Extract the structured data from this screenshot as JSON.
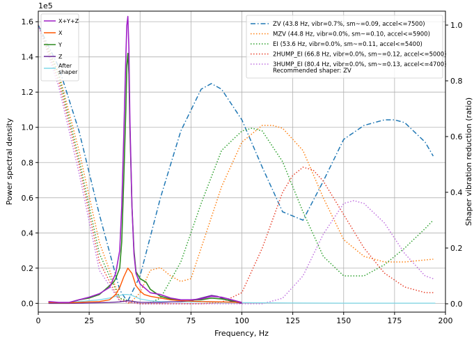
{
  "chart_data": {
    "type": "line",
    "xlabel": "Frequency, Hz",
    "ylabel_left": "Power spectral density",
    "ylabel_right": "Shaper vibration reduction (ratio)",
    "y_left_exponent": "1e5",
    "xlim": [
      0,
      200
    ],
    "ylim_left": [
      -0.05,
      1.66
    ],
    "ylim_right": [
      -0.03,
      1.05
    ],
    "grid": true,
    "x_ticks": [
      0,
      25,
      50,
      75,
      100,
      125,
      150,
      175,
      200
    ],
    "y_left_ticks": [
      0.0,
      0.2,
      0.4,
      0.6,
      0.8,
      1.0,
      1.2,
      1.4,
      1.6
    ],
    "y_right_ticks": [
      0.0,
      0.2,
      0.4,
      0.6,
      0.8,
      1.0
    ],
    "psd_legend": {
      "placement": "upper-left",
      "entries": [
        "X+Y+Z",
        "X",
        "Y",
        "Z",
        "After\nshaper"
      ]
    },
    "shaper_legend": {
      "placement": "upper-right",
      "entries": [
        "ZV (43.8 Hz, vibr=0.7%, sm~=0.09, accel<=7500)",
        "MZV (44.8 Hz, vibr=0.0%, sm~=0.10, accel<=5900)",
        "EI (53.6 Hz, vibr=0.0%, sm~=0.11, accel<=5400)",
        "2HUMP_EI (66.8 Hz, vibr=0.0%, sm~=0.12, accel<=5000)",
        "3HUMP_EI (80.4 Hz, vibr=0.0%, sm~=0.13, accel<=4700)"
      ],
      "note": "Recommended shaper: ZV"
    },
    "psd_series": [
      {
        "name": "X+Y+Z",
        "color": "#a020c8",
        "width": 1.6,
        "x": [
          5,
          10,
          15,
          20,
          25,
          30,
          35,
          38,
          40,
          41,
          42,
          43,
          43.5,
          44,
          44.5,
          45,
          46,
          47,
          48,
          50,
          55,
          60,
          65,
          70,
          75,
          80,
          85,
          90,
          95,
          100
        ],
        "y": [
          0.01,
          0.005,
          0.005,
          0.02,
          0.035,
          0.055,
          0.09,
          0.17,
          0.3,
          0.55,
          0.95,
          1.4,
          1.58,
          1.63,
          1.45,
          1.05,
          0.55,
          0.28,
          0.17,
          0.11,
          0.06,
          0.05,
          0.03,
          0.02,
          0.02,
          0.025,
          0.04,
          0.035,
          0.02,
          0.005
        ]
      },
      {
        "name": "X",
        "color": "#ff5500",
        "width": 1.4,
        "x": [
          5,
          10,
          15,
          20,
          25,
          30,
          35,
          38,
          40,
          42,
          44,
          46,
          48,
          50,
          52,
          55,
          60,
          65,
          70,
          80,
          90,
          100
        ],
        "y": [
          0.005,
          0.003,
          0.003,
          0.005,
          0.008,
          0.01,
          0.02,
          0.05,
          0.09,
          0.15,
          0.2,
          0.17,
          0.1,
          0.07,
          0.05,
          0.04,
          0.03,
          0.02,
          0.015,
          0.01,
          0.008,
          0.005
        ]
      },
      {
        "name": "Y",
        "color": "#2e8b20",
        "width": 1.6,
        "x": [
          5,
          10,
          15,
          20,
          25,
          30,
          32,
          35,
          37,
          38,
          39,
          40,
          41,
          42,
          43,
          43.5,
          44,
          44.5,
          45,
          46,
          47,
          48,
          50,
          53,
          55,
          60,
          65,
          70,
          75,
          80,
          85,
          90,
          95,
          100
        ],
        "y": [
          0.005,
          0.003,
          0.003,
          0.02,
          0.03,
          0.05,
          0.07,
          0.1,
          0.12,
          0.14,
          0.17,
          0.2,
          0.35,
          0.7,
          1.1,
          1.35,
          1.42,
          1.3,
          1.0,
          0.55,
          0.3,
          0.18,
          0.14,
          0.12,
          0.08,
          0.04,
          0.025,
          0.02,
          0.02,
          0.02,
          0.03,
          0.025,
          0.015,
          0.005
        ]
      },
      {
        "name": "Z",
        "color": "#6a2a9a",
        "width": 1.4,
        "x": [
          5,
          15,
          25,
          35,
          40,
          42,
          44,
          46,
          48,
          50,
          55,
          60,
          65,
          70,
          75,
          80,
          85,
          88,
          90,
          95,
          100
        ],
        "y": [
          0.0,
          0.0,
          0.002,
          0.005,
          0.008,
          0.012,
          0.015,
          0.012,
          0.008,
          0.006,
          0.005,
          0.005,
          0.008,
          0.01,
          0.015,
          0.03,
          0.045,
          0.04,
          0.03,
          0.01,
          0.0
        ]
      },
      {
        "name": "After\nshaper",
        "color": "#7fd8e8",
        "width": 1.3,
        "x": [
          5,
          10,
          15,
          20,
          25,
          30,
          35,
          38,
          40,
          42,
          44,
          46,
          48,
          50,
          55,
          60,
          70,
          80,
          90,
          100,
          125,
          150,
          175,
          195
        ],
        "y": [
          0.005,
          0.004,
          0.004,
          0.01,
          0.015,
          0.02,
          0.03,
          0.04,
          0.045,
          0.05,
          0.05,
          0.045,
          0.035,
          0.025,
          0.015,
          0.01,
          0.008,
          0.008,
          0.006,
          0.004,
          0.002,
          0.001,
          0.001,
          0.001
        ]
      }
    ],
    "shaper_series": [
      {
        "name": "ZV",
        "color": "#1f77b4",
        "dash": "7,3,1.5,3",
        "x": [
          0,
          10,
          20,
          30,
          40,
          43.8,
          50,
          60,
          70,
          80,
          85,
          90,
          100,
          110,
          120,
          130,
          140,
          150,
          160,
          170,
          175,
          180,
          190,
          194
        ],
        "y": [
          1.0,
          0.85,
          0.62,
          0.32,
          0.05,
          0.007,
          0.1,
          0.38,
          0.62,
          0.77,
          0.79,
          0.77,
          0.66,
          0.49,
          0.33,
          0.3,
          0.44,
          0.59,
          0.64,
          0.66,
          0.66,
          0.65,
          0.58,
          0.53
        ]
      },
      {
        "name": "MZV",
        "color": "#ff7f0e",
        "dash": "1.5,2.5",
        "x": [
          0,
          10,
          20,
          30,
          40,
          44.8,
          50,
          55,
          60,
          65,
          70,
          75,
          80,
          90,
          100,
          110,
          115,
          120,
          130,
          140,
          150,
          160,
          170,
          180,
          194
        ],
        "y": [
          1.0,
          0.83,
          0.55,
          0.22,
          0.02,
          0.0,
          0.04,
          0.12,
          0.13,
          0.1,
          0.08,
          0.09,
          0.2,
          0.42,
          0.58,
          0.64,
          0.64,
          0.63,
          0.55,
          0.38,
          0.23,
          0.17,
          0.15,
          0.15,
          0.16
        ]
      },
      {
        "name": "EI",
        "color": "#2ca02c",
        "dash": "1.5,2.5",
        "x": [
          0,
          10,
          20,
          30,
          40,
          50,
          53.6,
          60,
          70,
          80,
          90,
          100,
          105,
          110,
          120,
          130,
          140,
          150,
          160,
          170,
          180,
          190,
          194
        ],
        "y": [
          1.0,
          0.82,
          0.52,
          0.18,
          0.02,
          0.0,
          0.0,
          0.02,
          0.15,
          0.36,
          0.55,
          0.62,
          0.63,
          0.62,
          0.51,
          0.33,
          0.17,
          0.1,
          0.1,
          0.14,
          0.2,
          0.27,
          0.3
        ]
      },
      {
        "name": "2HUMP_EI",
        "color": "#e8402a",
        "dash": "1.5,2.5",
        "x": [
          0,
          10,
          20,
          30,
          40,
          50,
          60,
          66.8,
          70,
          80,
          90,
          100,
          110,
          120,
          125,
          130,
          135,
          140,
          150,
          160,
          170,
          180,
          190,
          194
        ],
        "y": [
          1.0,
          0.8,
          0.5,
          0.15,
          0.01,
          0.0,
          0.0,
          0.0,
          0.0,
          0.0,
          0.005,
          0.04,
          0.2,
          0.4,
          0.46,
          0.49,
          0.48,
          0.44,
          0.32,
          0.2,
          0.11,
          0.06,
          0.04,
          0.04
        ]
      },
      {
        "name": "3HUMP_EI",
        "color": "#c070e0",
        "dash": "1.5,2.5",
        "x": [
          0,
          10,
          20,
          30,
          40,
          50,
          60,
          70,
          80.4,
          90,
          100,
          110,
          120,
          130,
          140,
          150,
          155,
          160,
          170,
          180,
          190,
          194
        ],
        "y": [
          1.0,
          0.78,
          0.47,
          0.12,
          0.01,
          0.0,
          0.0,
          0.0,
          0.0,
          0.0,
          0.0,
          0.0,
          0.02,
          0.1,
          0.25,
          0.36,
          0.37,
          0.36,
          0.29,
          0.18,
          0.1,
          0.09
        ]
      }
    ]
  }
}
